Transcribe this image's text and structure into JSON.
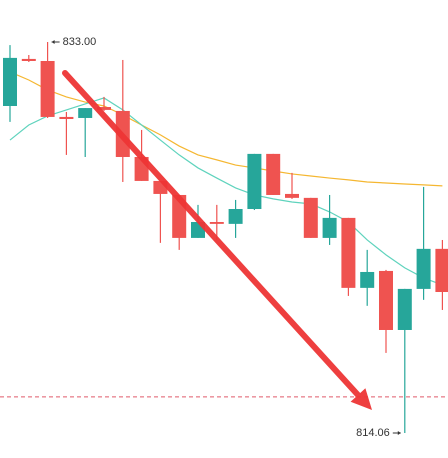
{
  "chart_data": {
    "type": "candlestick",
    "up_color": "#26a69a",
    "down_color": "#ef5350",
    "open": [
      829.9,
      832.18,
      832.08,
      829.37,
      829.32,
      829.85,
      829.66,
      827.43,
      826.27,
      825.59,
      823.51,
      824.28,
      824.19,
      824.91,
      827.58,
      825.64,
      825.45,
      823.51,
      824.48,
      821.09,
      821.91,
      819.05,
      821.04,
      822.98
    ],
    "high": [
      832.85,
      832.37,
      833.0,
      829.61,
      829.8,
      830.34,
      832.13,
      828.74,
      826.27,
      825.59,
      825.11,
      825.11,
      825.35,
      827.58,
      827.58,
      826.66,
      825.45,
      825.59,
      824.48,
      822.93,
      821.96,
      821.04,
      825.98,
      823.41
    ],
    "low": [
      829.13,
      832.03,
      829.32,
      827.53,
      827.43,
      829.66,
      826.22,
      826.27,
      823.27,
      822.93,
      823.51,
      823.41,
      823.51,
      824.86,
      825.59,
      825.4,
      823.51,
      823.17,
      820.7,
      820.22,
      817.94,
      814.06,
      820.51,
      820.02
    ],
    "close": [
      832.23,
      832.08,
      829.37,
      829.27,
      829.8,
      829.71,
      827.43,
      826.27,
      825.64,
      823.51,
      824.28,
      824.19,
      824.91,
      827.58,
      825.59,
      825.45,
      823.51,
      824.48,
      821.09,
      821.86,
      819.05,
      821.04,
      822.98,
      820.89
    ],
    "series": [
      {
        "color": "#f5b731",
        "values": [
          831.55,
          831.16,
          830.68,
          830.34,
          830.09,
          829.9,
          829.47,
          828.98,
          828.5,
          827.96,
          827.53,
          827.29,
          827.04,
          826.9,
          826.75,
          826.61,
          826.51,
          826.41,
          826.32,
          826.22,
          826.17,
          826.12,
          826.08,
          826.03
        ]
      },
      {
        "color": "#5fd3bd",
        "values": [
          828.25,
          828.98,
          829.42,
          829.71,
          830.0,
          830.29,
          829.71,
          828.98,
          828.25,
          827.53,
          826.9,
          826.41,
          825.93,
          825.59,
          825.4,
          825.25,
          825.16,
          824.77,
          824.28,
          823.41,
          822.69,
          822.06,
          821.57,
          821.23
        ]
      }
    ],
    "price_line": 815.81,
    "price_line_color": "#e05a6a",
    "max_label": {
      "value": 833.0,
      "label": "833.00"
    },
    "min_label": {
      "value": 814.06,
      "label": "814.06"
    }
  }
}
